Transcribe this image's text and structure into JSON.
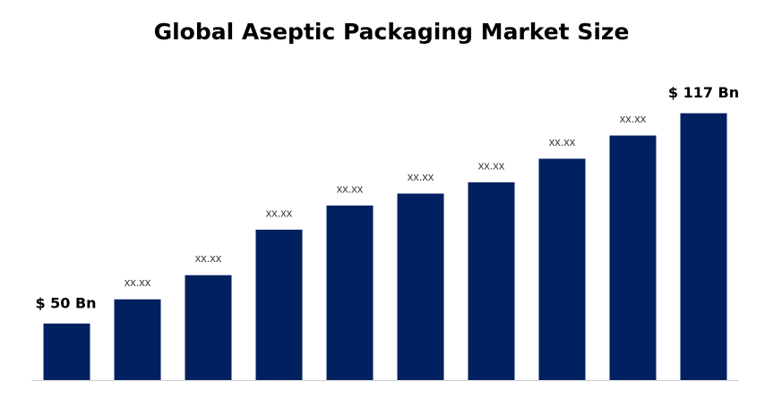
{
  "chart_data": {
    "type": "bar",
    "title": "Global Aseptic Packaging Market Size",
    "values": [
      50,
      57.7,
      65.4,
      79.9,
      87.6,
      91.4,
      95,
      102.5,
      109.9,
      117
    ],
    "value_labels": [
      "$ 50 Bn",
      "xx.xx",
      "xx.xx",
      "xx.xx",
      "xx.xx",
      "xx.xx",
      "xx.xx",
      "xx.xx",
      "xx.xx",
      "$ 117 Bn"
    ],
    "color": "#002060",
    "ylim": [
      32,
      130
    ]
  }
}
